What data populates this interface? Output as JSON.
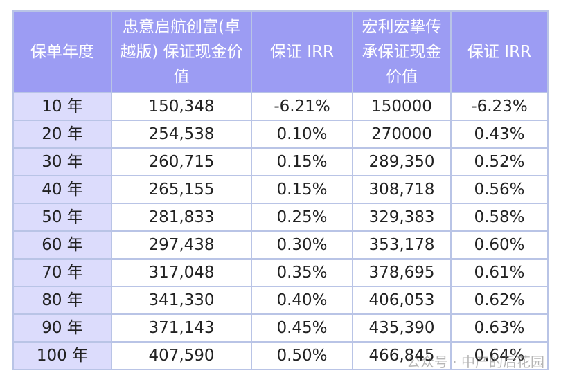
{
  "table": {
    "header": [
      "保单年度",
      "忠意启航创富(卓越版) 保证现金价值",
      "保证 IRR",
      "宏利宏挚传承保证现金价值",
      "保证 IRR"
    ],
    "rows": [
      [
        "10 年",
        "150,348",
        "-6.21%",
        "150000",
        "-6.23%"
      ],
      [
        "20 年",
        "254,538",
        "0.10%",
        "270000",
        "0.43%"
      ],
      [
        "30 年",
        "260,715",
        "0.15%",
        "289,350",
        "0.52%"
      ],
      [
        "40 年",
        "265,155",
        "0.15%",
        "308,718",
        "0.56%"
      ],
      [
        "50 年",
        "281,833",
        "0.25%",
        "329,383",
        "0.58%"
      ],
      [
        "60 年",
        "297,438",
        "0.30%",
        "353,178",
        "0.60%"
      ],
      [
        "70 年",
        "317,048",
        "0.35%",
        "378,695",
        "0.61%"
      ],
      [
        "80 年",
        "341,330",
        "0.40%",
        "406,053",
        "0.62%"
      ],
      [
        "90 年",
        "371,143",
        "0.45%",
        "435,390",
        "0.63%"
      ],
      [
        "100 年",
        "407,590",
        "0.50%",
        "466,845",
        "0.64%"
      ]
    ]
  },
  "watermark": "公众号 · 中产的后花园"
}
